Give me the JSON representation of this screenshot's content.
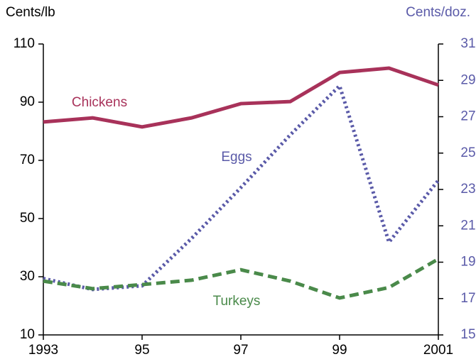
{
  "chart_data": {
    "type": "line",
    "y_label": "Cents/lb",
    "y2_label": "Cents/doz.",
    "x": [
      1993,
      1994,
      1995,
      1996,
      1997,
      1998,
      1999,
      2000,
      2001
    ],
    "xlim": [
      1993,
      2001
    ],
    "xticks": [
      1993,
      {
        "value": 1995,
        "label": "95"
      },
      {
        "value": 1997,
        "label": "97"
      },
      {
        "value": 1999,
        "label": "99"
      },
      2001
    ],
    "ylim": [
      10,
      110
    ],
    "yticks": [
      10,
      30,
      50,
      70,
      90,
      110
    ],
    "y2lim": [
      15,
      31
    ],
    "y2ticks": [
      15,
      17,
      19,
      21,
      23,
      25,
      27,
      29,
      31
    ],
    "series": [
      {
        "name": "Chickens",
        "color": "#a8325a",
        "dash": "solid",
        "values": [
          83.2,
          84.6,
          81.5,
          84.6,
          89.5,
          90.2,
          100.2,
          101.7,
          95.9
        ]
      },
      {
        "name": "Eggs",
        "color": "#5a5aa8",
        "dash": "dotted",
        "axis": "y2",
        "values": [
          18.1,
          17.5,
          17.7,
          20.3,
          23.1,
          26.0,
          28.7,
          20.1,
          23.5
        ]
      },
      {
        "name": "Turkeys",
        "color": "#4a8a4a",
        "dash": "dashed",
        "values": [
          28.5,
          25.9,
          27.3,
          28.8,
          32.4,
          28.5,
          22.7,
          26.3,
          36.1
        ]
      }
    ]
  }
}
